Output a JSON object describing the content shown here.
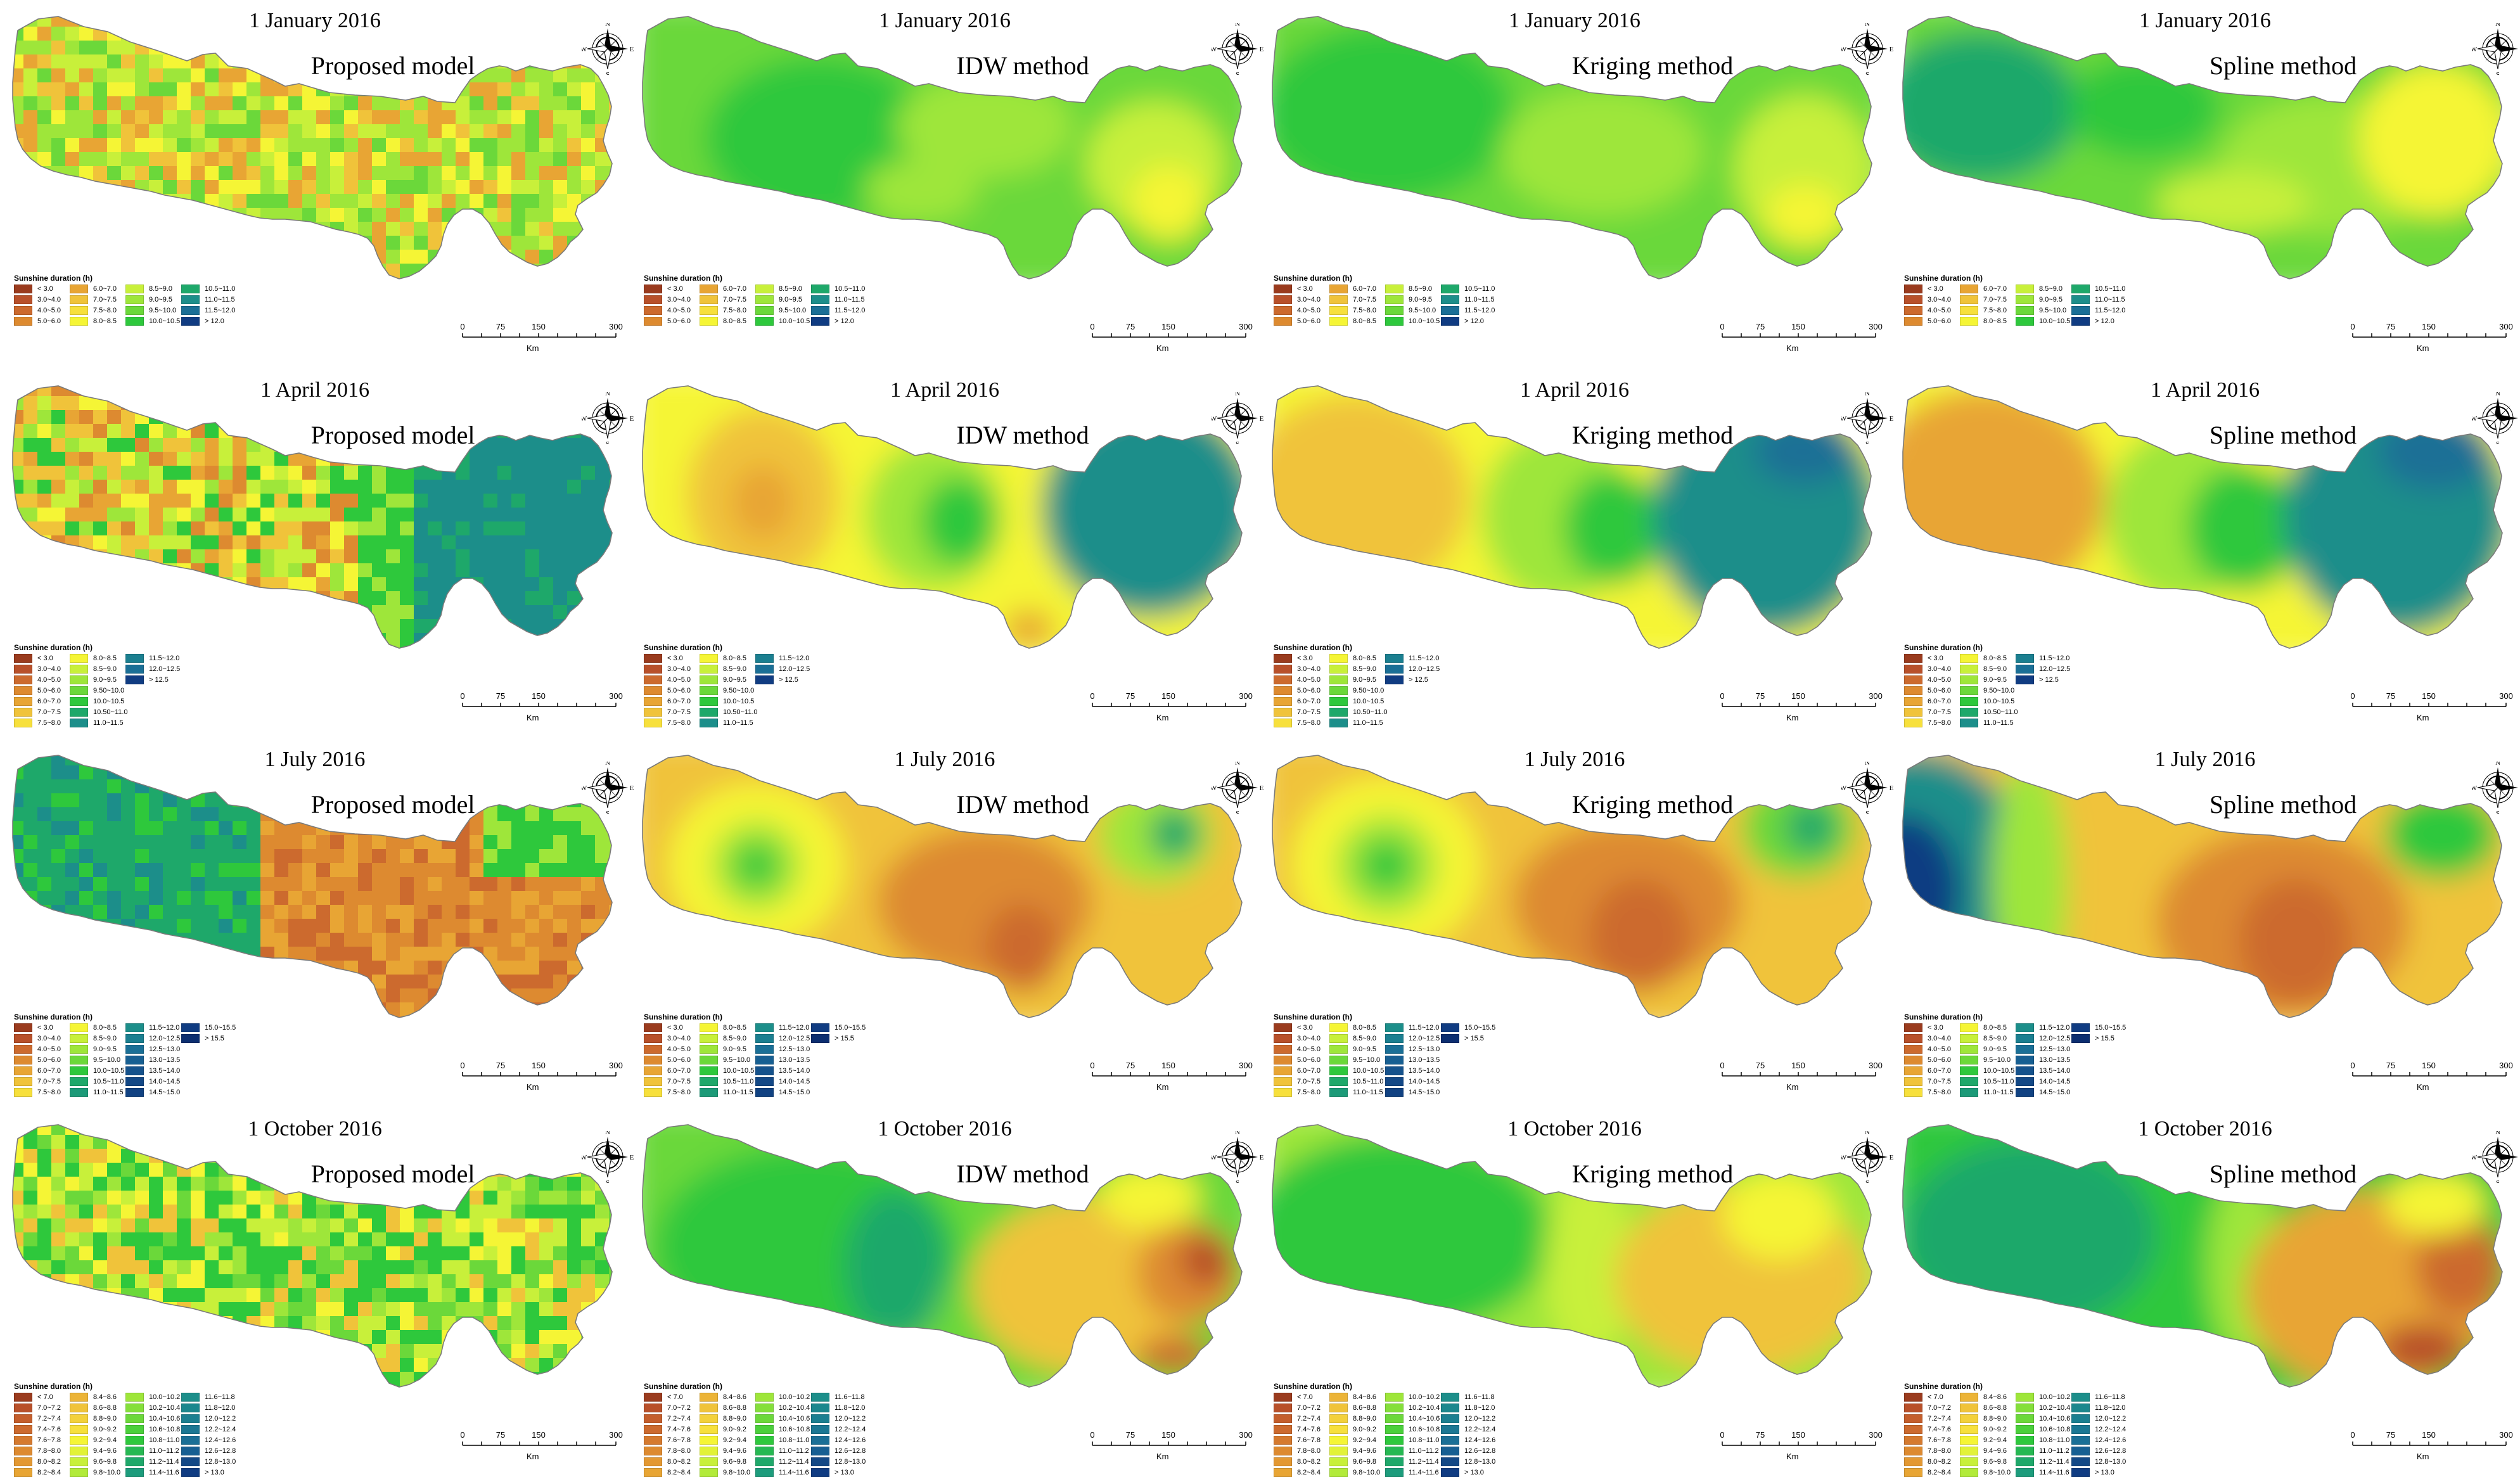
{
  "figure": {
    "rows": [
      {
        "date": "1 January 2016",
        "scheme": "jan"
      },
      {
        "date": "1 April 2016",
        "scheme": "apr"
      },
      {
        "date": "1 July 2016",
        "scheme": "jul"
      },
      {
        "date": "1 October 2016",
        "scheme": "oct"
      }
    ],
    "methods": [
      "Proposed model",
      "IDW method",
      "Kriging method",
      "Spline method"
    ],
    "legend_title": "Sunshine duration (h)",
    "scale": {
      "ticks": [
        "0",
        "75",
        "150",
        "300"
      ],
      "unit": "Km"
    },
    "compass": {
      "n": "N",
      "s": "S",
      "e": "E",
      "w": "W"
    }
  },
  "legends": {
    "jan": [
      {
        "label": "< 3.0",
        "color": "#9a3b1e"
      },
      {
        "label": "3.0~4.0",
        "color": "#b8502a"
      },
      {
        "label": "4.0~5.0",
        "color": "#cc6a2e"
      },
      {
        "label": "5.0~6.0",
        "color": "#dd8a30"
      },
      {
        "label": "6.0~7.0",
        "color": "#e8a534"
      },
      {
        "label": "7.0~7.5",
        "color": "#f0c33a"
      },
      {
        "label": "7.5~8.0",
        "color": "#f7e03c"
      },
      {
        "label": "8.0~8.5",
        "color": "#f5f535"
      },
      {
        "label": "8.5~9.0",
        "color": "#c8f03a"
      },
      {
        "label": "9.0~9.5",
        "color": "#9ee63a"
      },
      {
        "label": "9.5~10.0",
        "color": "#6bd83a"
      },
      {
        "label": "10.0~10.5",
        "color": "#2ec83c"
      },
      {
        "label": "10.5~11.0",
        "color": "#1ea86a"
      },
      {
        "label": "11.0~11.5",
        "color": "#1c8e8a"
      },
      {
        "label": "11.5~12.0",
        "color": "#1a6f96"
      },
      {
        "label": "> 12.0",
        "color": "#103c82"
      }
    ],
    "apr": [
      {
        "label": "< 3.0",
        "color": "#9a3b1e"
      },
      {
        "label": "3.0~4.0",
        "color": "#b8502a"
      },
      {
        "label": "4.0~5.0",
        "color": "#cc6a2e"
      },
      {
        "label": "5.0~6.0",
        "color": "#dd8a30"
      },
      {
        "label": "6.0~7.0",
        "color": "#e8a534"
      },
      {
        "label": "7.0~7.5",
        "color": "#f0c33a"
      },
      {
        "label": "7.5~8.0",
        "color": "#f7e03c"
      },
      {
        "label": "8.0~8.5",
        "color": "#f5f535"
      },
      {
        "label": "8.5~9.0",
        "color": "#c8f03a"
      },
      {
        "label": "9.0~9.5",
        "color": "#9ee63a"
      },
      {
        "label": "9.50~10.0",
        "color": "#6bd83a"
      },
      {
        "label": "10.0~10.5",
        "color": "#2ec83c"
      },
      {
        "label": "10.50~11.0",
        "color": "#1ea86a"
      },
      {
        "label": "11.0~11.5",
        "color": "#1c8e8a"
      },
      {
        "label": "11.5~12.0",
        "color": "#1b7f90"
      },
      {
        "label": "12.0~12.5",
        "color": "#1a6f96"
      },
      {
        "label": "> 12.5",
        "color": "#103c82"
      }
    ],
    "jul": [
      {
        "label": "< 3.0",
        "color": "#9a3b1e"
      },
      {
        "label": "3.0~4.0",
        "color": "#b8502a"
      },
      {
        "label": "4.0~5.0",
        "color": "#cc6a2e"
      },
      {
        "label": "5.0~6.0",
        "color": "#dd8a30"
      },
      {
        "label": "6.0~7.0",
        "color": "#e8a534"
      },
      {
        "label": "7.0~7.5",
        "color": "#f0c33a"
      },
      {
        "label": "7.5~8.0",
        "color": "#f7e03c"
      },
      {
        "label": "8.0~8.5",
        "color": "#f5f535"
      },
      {
        "label": "8.5~9.0",
        "color": "#c8f03a"
      },
      {
        "label": "9.0~9.5",
        "color": "#9ee63a"
      },
      {
        "label": "9.5~10.0",
        "color": "#6bd83a"
      },
      {
        "label": "10.0~10.5",
        "color": "#2ec83c"
      },
      {
        "label": "10.5~11.0",
        "color": "#1ea86a"
      },
      {
        "label": "11.0~11.5",
        "color": "#1c9a78"
      },
      {
        "label": "11.5~12.0",
        "color": "#1c8e8a"
      },
      {
        "label": "12.0~12.5",
        "color": "#1b7f90"
      },
      {
        "label": "12.5~13.0",
        "color": "#1a6f96"
      },
      {
        "label": "13.0~13.5",
        "color": "#175f92"
      },
      {
        "label": "13.5~14.0",
        "color": "#15528c"
      },
      {
        "label": "14.0~14.5",
        "color": "#134886"
      },
      {
        "label": "14.5~15.0",
        "color": "#114282"
      },
      {
        "label": "15.0~15.5",
        "color": "#103c82"
      },
      {
        "label": "> 15.5",
        "color": "#0c2e70"
      }
    ],
    "oct": [
      {
        "label": "< 7.0",
        "color": "#9a3b1e"
      },
      {
        "label": "7.0~7.2",
        "color": "#b8502a"
      },
      {
        "label": "7.2~7.4",
        "color": "#c45e2c"
      },
      {
        "label": "7.4~7.6",
        "color": "#cc6a2e"
      },
      {
        "label": "7.6~7.8",
        "color": "#d57a2f"
      },
      {
        "label": "7.8~8.0",
        "color": "#dd8a30"
      },
      {
        "label": "8.0~8.2",
        "color": "#e39832"
      },
      {
        "label": "8.2~8.4",
        "color": "#e8a534"
      },
      {
        "label": "8.4~8.6",
        "color": "#ecb437"
      },
      {
        "label": "8.6~8.8",
        "color": "#f0c33a"
      },
      {
        "label": "8.8~9.0",
        "color": "#f3d13b"
      },
      {
        "label": "9.0~9.2",
        "color": "#f7e03c"
      },
      {
        "label": "9.2~9.4",
        "color": "#f5f535"
      },
      {
        "label": "9.4~9.6",
        "color": "#e2f238"
      },
      {
        "label": "9.6~9.8",
        "color": "#c8f03a"
      },
      {
        "label": "9.8~10.0",
        "color": "#b2eb3a"
      },
      {
        "label": "10.0~10.2",
        "color": "#9ee63a"
      },
      {
        "label": "10.2~10.4",
        "color": "#84df3a"
      },
      {
        "label": "10.4~10.6",
        "color": "#6bd83a"
      },
      {
        "label": "10.6~10.8",
        "color": "#4ad03b"
      },
      {
        "label": "10.8~11.0",
        "color": "#2ec83c"
      },
      {
        "label": "11.0~11.2",
        "color": "#26b852"
      },
      {
        "label": "11.2~11.4",
        "color": "#1ea86a"
      },
      {
        "label": "11.4~11.6",
        "color": "#1d9c7c"
      },
      {
        "label": "11.6~11.8",
        "color": "#1c8e8a"
      },
      {
        "label": "11.8~12.0",
        "color": "#1b878d"
      },
      {
        "label": "12.0~12.2",
        "color": "#1b7f90"
      },
      {
        "label": "12.2~12.4",
        "color": "#1a7793"
      },
      {
        "label": "12.4~12.6",
        "color": "#1a6f96"
      },
      {
        "label": "12.6~12.8",
        "color": "#175f92"
      },
      {
        "label": "12.8~13.0",
        "color": "#134886"
      },
      {
        "label": "> 13.0",
        "color": "#103c82"
      }
    ]
  },
  "colors": {
    "background": "#ffffff",
    "outline": "#7a7a7a",
    "yellow": "#f5f535",
    "lime": "#9ee63a",
    "green": "#2ec83c",
    "teal": "#1c8e8a",
    "darkteal": "#1a6f96",
    "orange": "#e8a534",
    "darkorange": "#cc6a2e",
    "navy": "#103c82"
  }
}
